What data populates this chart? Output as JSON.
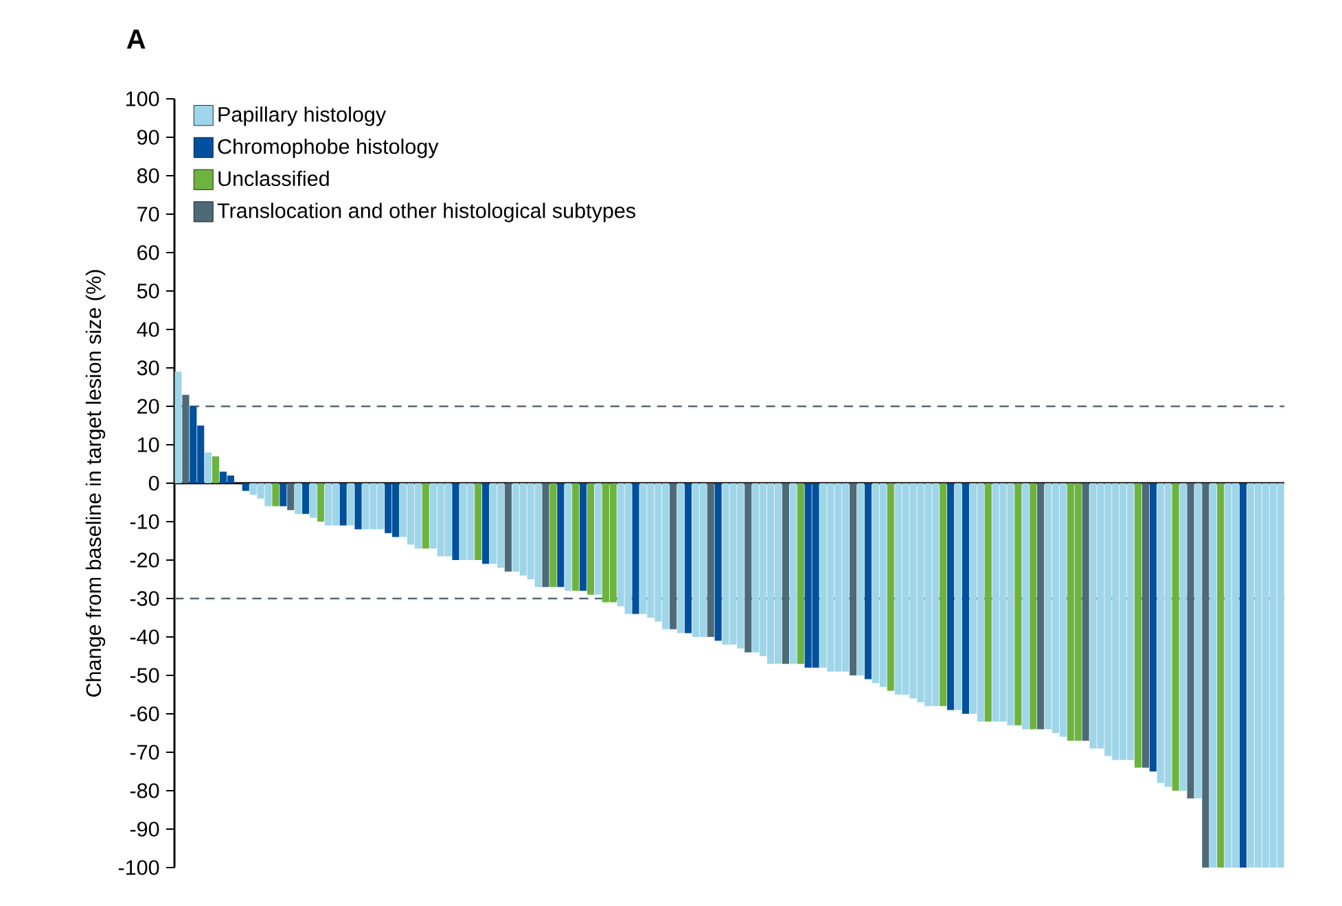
{
  "chart_data": {
    "type": "bar",
    "title": "A",
    "ylabel": "Change from baseline in target lesion size (%)",
    "categories": [
      null,
      null,
      null,
      null,
      null,
      null,
      null,
      null,
      null,
      null,
      null,
      null,
      null,
      null,
      null,
      null,
      null,
      null,
      null,
      null,
      null,
      null,
      null,
      null,
      null,
      null,
      null,
      null,
      null,
      null,
      null,
      null,
      null,
      null,
      null,
      null,
      null,
      null,
      null,
      null,
      null,
      null,
      null,
      null,
      null,
      null,
      null,
      null,
      null,
      null,
      null,
      null,
      null,
      null,
      null,
      null,
      null,
      null,
      null,
      null,
      null,
      null,
      null,
      null,
      null,
      null,
      null,
      null,
      null,
      null,
      null,
      null,
      null,
      null,
      null,
      null,
      null,
      null,
      null,
      null,
      null,
      null,
      null,
      null,
      null,
      null,
      null,
      null,
      null,
      null,
      null,
      null,
      null,
      null,
      null,
      null,
      null,
      null,
      null,
      null,
      null,
      null,
      null,
      null,
      null,
      null,
      null,
      null,
      null,
      null,
      null,
      null,
      null,
      null,
      null,
      null,
      null,
      null,
      null,
      null,
      null,
      null,
      null,
      null,
      null,
      null,
      null,
      null,
      null,
      null,
      null,
      null,
      null,
      null,
      null,
      null,
      null,
      null,
      null,
      null,
      null,
      null,
      null,
      null,
      null,
      null,
      null,
      null
    ],
    "series": [
      {
        "name": "Papillary histology",
        "color": "#9fd5e8",
        "values": [
          29,
          null,
          null,
          null,
          8,
          null,
          null,
          null,
          null,
          null,
          -3,
          -4,
          -6,
          null,
          null,
          null,
          -8,
          null,
          -9,
          null,
          -11,
          -11,
          null,
          -11,
          null,
          -12,
          -12,
          -12,
          null,
          null,
          -14,
          -16,
          -17,
          null,
          -17,
          -19,
          -19,
          null,
          -20,
          -20,
          null,
          null,
          -21,
          -22,
          null,
          -23,
          -24,
          -25,
          -27,
          null,
          null,
          null,
          -28,
          null,
          null,
          null,
          -29,
          null,
          null,
          -32,
          -34,
          null,
          -34,
          -35,
          -36,
          -38,
          null,
          -39,
          null,
          -40,
          -40,
          null,
          null,
          -42,
          -42,
          -43,
          null,
          -44,
          -45,
          -47,
          -47,
          null,
          -47,
          null,
          null,
          null,
          -48,
          -49,
          -49,
          -49,
          null,
          -50,
          null,
          -52,
          -53,
          null,
          -55,
          -55,
          -56,
          -57,
          -58,
          -58,
          null,
          null,
          -59,
          null,
          -60,
          -62,
          null,
          -62,
          -62,
          -63,
          null,
          -64,
          null,
          null,
          -64,
          -65,
          -66,
          null,
          null,
          null,
          -69,
          -69,
          -71,
          -72,
          -72,
          -72,
          null,
          null,
          null,
          -78,
          -79,
          null,
          -80,
          null,
          -82,
          null,
          -100,
          null,
          -100,
          -100,
          null,
          -100,
          -100,
          -100,
          -100,
          -100
        ]
      },
      {
        "name": "Chromophobe histology",
        "color": "#00509d",
        "values": [
          null,
          null,
          20,
          15,
          null,
          null,
          3,
          2,
          null,
          -2,
          null,
          null,
          null,
          null,
          -6,
          null,
          null,
          -8,
          null,
          null,
          null,
          null,
          -11,
          null,
          -12,
          null,
          null,
          null,
          -13,
          -14,
          null,
          null,
          null,
          null,
          null,
          null,
          null,
          -20,
          null,
          null,
          null,
          -21,
          null,
          null,
          null,
          null,
          null,
          null,
          null,
          null,
          null,
          -27,
          null,
          null,
          -28,
          null,
          null,
          null,
          null,
          null,
          null,
          -34,
          null,
          null,
          null,
          null,
          null,
          null,
          -39,
          null,
          null,
          null,
          -41,
          null,
          null,
          null,
          null,
          null,
          null,
          null,
          null,
          null,
          null,
          null,
          -48,
          -48,
          null,
          null,
          null,
          null,
          null,
          null,
          -51,
          null,
          null,
          null,
          null,
          null,
          null,
          null,
          null,
          null,
          null,
          -59,
          null,
          -60,
          null,
          null,
          null,
          null,
          null,
          null,
          null,
          null,
          null,
          null,
          null,
          null,
          null,
          null,
          null,
          null,
          null,
          null,
          null,
          null,
          null,
          null,
          null,
          null,
          -75,
          null,
          null,
          null,
          null,
          null,
          null,
          null,
          null,
          null,
          null,
          null,
          -100,
          null,
          null,
          null,
          null,
          null
        ]
      },
      {
        "name": "Unclassified",
        "color": "#6db33f",
        "values": [
          null,
          null,
          null,
          null,
          null,
          7,
          null,
          null,
          null,
          null,
          null,
          null,
          null,
          -6,
          null,
          null,
          null,
          null,
          null,
          -10,
          null,
          null,
          null,
          null,
          null,
          null,
          null,
          null,
          null,
          null,
          null,
          null,
          null,
          -17,
          null,
          null,
          null,
          null,
          null,
          null,
          -20,
          null,
          null,
          null,
          null,
          null,
          null,
          null,
          null,
          null,
          -27,
          null,
          null,
          -28,
          null,
          -29,
          null,
          -31,
          -31,
          null,
          null,
          null,
          null,
          null,
          null,
          null,
          null,
          null,
          null,
          null,
          null,
          null,
          null,
          null,
          null,
          null,
          null,
          null,
          null,
          null,
          null,
          null,
          null,
          -47,
          null,
          null,
          null,
          null,
          null,
          null,
          null,
          null,
          null,
          null,
          null,
          -54,
          null,
          null,
          null,
          null,
          null,
          null,
          -58,
          null,
          null,
          null,
          null,
          null,
          -62,
          null,
          null,
          null,
          -63,
          null,
          -64,
          null,
          null,
          null,
          null,
          -67,
          -67,
          null,
          null,
          null,
          null,
          null,
          null,
          null,
          -74,
          null,
          null,
          null,
          null,
          -80,
          null,
          null,
          null,
          null,
          null,
          -100,
          null,
          null,
          null,
          null,
          null,
          null,
          null,
          null
        ]
      },
      {
        "name": "Translocation and other histological subtypes",
        "color": "#4d6a77",
        "values": [
          null,
          23,
          null,
          null,
          null,
          null,
          null,
          null,
          null,
          null,
          null,
          null,
          null,
          null,
          null,
          -7,
          null,
          null,
          null,
          null,
          null,
          null,
          null,
          null,
          null,
          null,
          null,
          null,
          null,
          null,
          null,
          null,
          null,
          null,
          null,
          null,
          null,
          null,
          null,
          null,
          null,
          null,
          null,
          null,
          -23,
          null,
          null,
          null,
          null,
          -27,
          null,
          null,
          null,
          null,
          null,
          null,
          null,
          null,
          null,
          null,
          null,
          null,
          null,
          null,
          null,
          null,
          -38,
          null,
          null,
          null,
          null,
          -40,
          null,
          null,
          null,
          null,
          -44,
          null,
          null,
          null,
          null,
          -47,
          null,
          null,
          null,
          null,
          null,
          null,
          null,
          null,
          -50,
          null,
          null,
          null,
          null,
          null,
          null,
          null,
          null,
          null,
          null,
          null,
          null,
          null,
          null,
          null,
          null,
          null,
          null,
          null,
          null,
          null,
          null,
          null,
          null,
          -64,
          null,
          null,
          null,
          null,
          null,
          -67,
          null,
          null,
          null,
          null,
          null,
          null,
          null,
          -74,
          null,
          null,
          null,
          null,
          null,
          -82,
          null,
          -100,
          null,
          null,
          null,
          null,
          null,
          null,
          null,
          null,
          null,
          null
        ]
      }
    ],
    "ylim": [
      -100,
      100
    ],
    "yticks": [
      -100,
      -90,
      -80,
      -70,
      -60,
      -50,
      -40,
      -30,
      -20,
      -10,
      0,
      10,
      20,
      30,
      40,
      50,
      60,
      70,
      80,
      90,
      100
    ],
    "tick_labels": "y",
    "legend": "top left",
    "ref_lines": [
      {
        "axis": "y",
        "value": 20,
        "color": "#4d6a77",
        "line_style": "dashed"
      },
      {
        "axis": "y",
        "value": -30,
        "color": "#4d6a77",
        "line_style": "dashed"
      }
    ]
  }
}
